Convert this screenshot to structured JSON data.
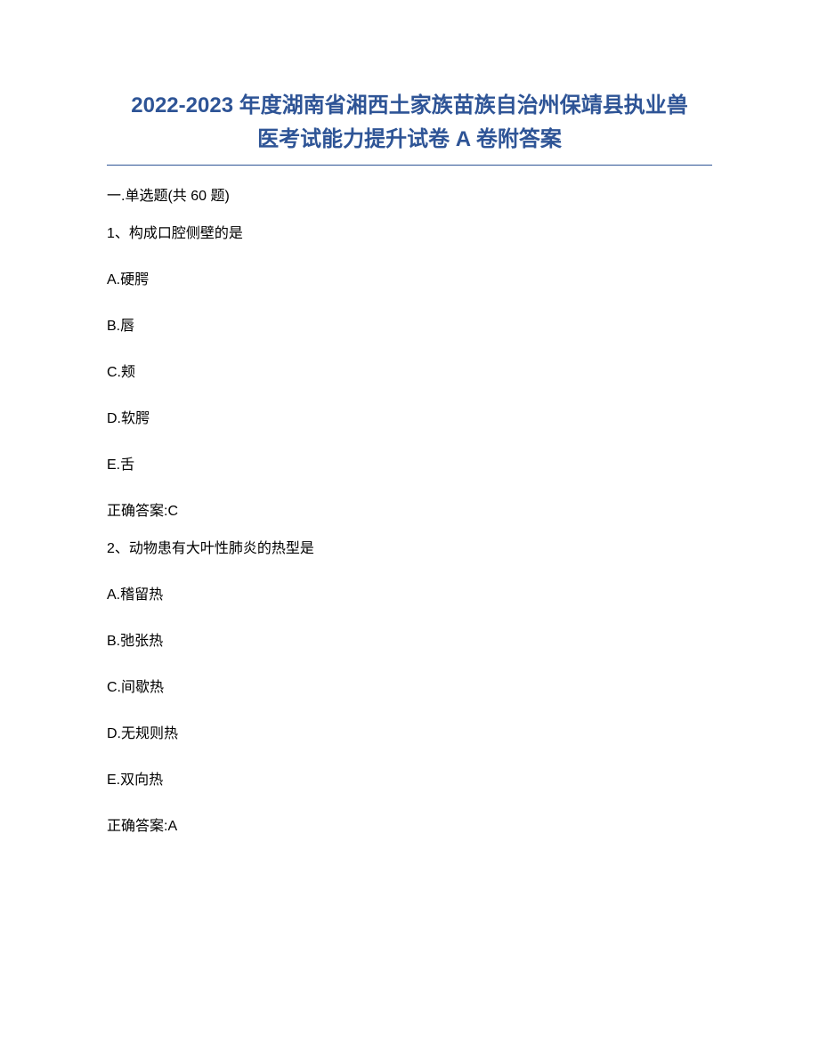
{
  "title_line1": "2022-2023 年度湖南省湘西土家族苗族自治州保靖县执业兽",
  "title_line2": "医考试能力提升试卷 A 卷附答案",
  "section_header": "一.单选题(共 60 题)",
  "questions": [
    {
      "stem": "1、构成口腔侧壁的是",
      "options": [
        "A.硬腭",
        "B.唇",
        "C.颊",
        "D.软腭",
        "E.舌"
      ],
      "answer": "正确答案:C"
    },
    {
      "stem": "2、动物患有大叶性肺炎的热型是",
      "options": [
        "A.稽留热",
        "B.弛张热",
        "C.间歇热",
        "D.无规则热",
        "E.双向热"
      ],
      "answer": "正确答案:A"
    }
  ]
}
